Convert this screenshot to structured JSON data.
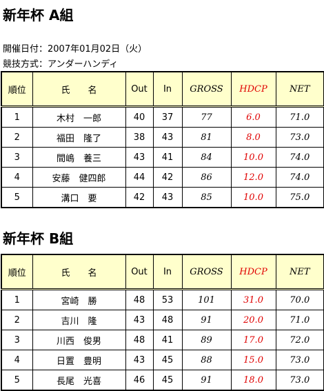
{
  "sections": [
    {
      "title": "新年杯 A組",
      "info": [
        "開催日付：2007年01月02日（火）",
        "競技方式：アンダーハンディ"
      ],
      "table": {
        "header": [
          "順位",
          "氏　　名",
          "Out",
          "In",
          "GROSS",
          "HDCP",
          "NET"
        ],
        "rows": [
          [
            "1",
            "木村　一郎",
            "40",
            "37",
            "77",
            "6.0",
            "71.0"
          ],
          [
            "2",
            "福田　隆了",
            "38",
            "43",
            "81",
            "8.0",
            "73.0"
          ],
          [
            "3",
            "間嶋　養三",
            "43",
            "41",
            "84",
            "10.0",
            "74.0"
          ],
          [
            "4",
            "安藤　健四郎",
            "44",
            "42",
            "86",
            "12.0",
            "74.0"
          ],
          [
            "5",
            "溝口　要",
            "42",
            "43",
            "85",
            "10.0",
            "75.0"
          ]
        ]
      }
    },
    {
      "title": "新年杯 B組",
      "table": {
        "header": [
          "順位",
          "氏　　名",
          "Out",
          "In",
          "GROSS",
          "HDCP",
          "NET"
        ],
        "rows": [
          [
            "1",
            "宮崎　勝",
            "48",
            "53",
            "101",
            "31.0",
            "70.0"
          ],
          [
            "2",
            "吉川　隆",
            "43",
            "48",
            "91",
            "20.0",
            "71.0"
          ],
          [
            "3",
            "川西　俊男",
            "48",
            "41",
            "89",
            "17.0",
            "72.0"
          ],
          [
            "4",
            "日置　豊明",
            "43",
            "45",
            "88",
            "15.0",
            "73.0"
          ],
          [
            "5",
            "長尾　光喜",
            "46",
            "45",
            "91",
            "18.0",
            "73.0"
          ]
        ]
      }
    }
  ]
}
